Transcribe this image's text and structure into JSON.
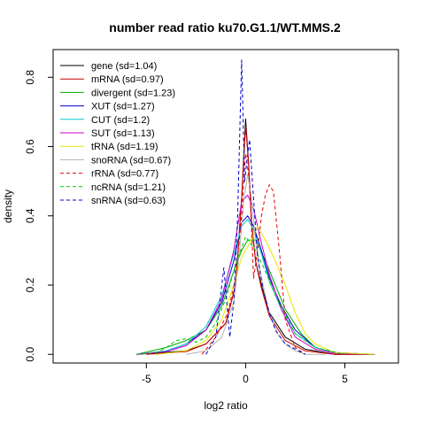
{
  "chart_data": {
    "type": "line",
    "title": "number read ratio ku70.G1.1/WT.MMS.2",
    "xlabel": "log2 ratio",
    "ylabel": "density",
    "xlim": [
      -9.7,
      7.7
    ],
    "ylim": [
      -0.025,
      0.88
    ],
    "x_ticks": [
      -5,
      0,
      5
    ],
    "x_tick_labels": [
      "-5",
      "0",
      "5"
    ],
    "y_ticks": [
      0.0,
      0.2,
      0.4,
      0.6,
      0.8
    ],
    "y_tick_labels": [
      "0.0",
      "0.2",
      "0.4",
      "0.6",
      "0.8"
    ],
    "grid": false,
    "legend_position": "top-left",
    "series": [
      {
        "name": "gene (sd=1.04)",
        "color": "#000000",
        "dash": "solid",
        "x": [
          -5.5,
          -3,
          -2,
          -1,
          -0.5,
          -0.2,
          0,
          0.15,
          0.3,
          0.5,
          0.8,
          1.2,
          2,
          3,
          4.5,
          6.5
        ],
        "y": [
          0,
          0.01,
          0.03,
          0.09,
          0.2,
          0.45,
          0.68,
          0.55,
          0.38,
          0.27,
          0.2,
          0.12,
          0.05,
          0.015,
          0,
          0
        ]
      },
      {
        "name": "mRNA (sd=0.97)",
        "color": "#cc0000",
        "dash": "solid",
        "x": [
          -5,
          -3,
          -2,
          -1,
          -0.5,
          -0.2,
          0,
          0.15,
          0.3,
          0.5,
          0.8,
          1.2,
          2,
          3,
          4.5,
          6.5
        ],
        "y": [
          0,
          0.008,
          0.03,
          0.09,
          0.2,
          0.45,
          0.66,
          0.55,
          0.38,
          0.27,
          0.19,
          0.11,
          0.04,
          0.01,
          0,
          0
        ]
      },
      {
        "name": "divergent (sd=1.23)",
        "color": "#00aa00",
        "dash": "solid",
        "x": [
          -5.5,
          -4,
          -3,
          -2,
          -1.2,
          -0.6,
          -0.2,
          0.1,
          0.5,
          1,
          1.5,
          2,
          2.8,
          3.5,
          4.5,
          6.5
        ],
        "y": [
          0,
          0.02,
          0.04,
          0.07,
          0.14,
          0.24,
          0.3,
          0.33,
          0.33,
          0.27,
          0.2,
          0.13,
          0.06,
          0.02,
          0.005,
          0
        ]
      },
      {
        "name": "XUT (sd=1.27)",
        "color": "#0000cc",
        "dash": "solid",
        "x": [
          -5.5,
          -4,
          -3,
          -2,
          -1.2,
          -0.6,
          -0.2,
          0.1,
          0.4,
          0.8,
          1.2,
          1.8,
          2.5,
          3.5,
          4.5,
          6.5
        ],
        "y": [
          0,
          0.01,
          0.03,
          0.07,
          0.15,
          0.27,
          0.38,
          0.4,
          0.37,
          0.3,
          0.22,
          0.14,
          0.07,
          0.02,
          0.005,
          0
        ]
      },
      {
        "name": "CUT (sd=1.2)",
        "color": "#00cccc",
        "dash": "solid",
        "x": [
          -5.5,
          -4,
          -3,
          -2,
          -1.2,
          -0.6,
          -0.2,
          0.1,
          0.4,
          0.8,
          1.2,
          1.8,
          2.5,
          3.5,
          4.5,
          6.5
        ],
        "y": [
          0,
          0.01,
          0.03,
          0.08,
          0.17,
          0.29,
          0.37,
          0.39,
          0.36,
          0.29,
          0.21,
          0.13,
          0.06,
          0.02,
          0.005,
          0
        ]
      },
      {
        "name": "SUT (sd=1.13)",
        "color": "#cc00cc",
        "dash": "solid",
        "x": [
          -5.5,
          -4,
          -3,
          -2,
          -1.2,
          -0.6,
          -0.2,
          0.1,
          0.4,
          0.8,
          1.2,
          1.8,
          2.5,
          3.5,
          4.5,
          6.5
        ],
        "y": [
          0,
          0.008,
          0.025,
          0.07,
          0.16,
          0.3,
          0.44,
          0.46,
          0.42,
          0.32,
          0.23,
          0.13,
          0.05,
          0.015,
          0.003,
          0
        ]
      },
      {
        "name": "tRNA (sd=1.19)",
        "color": "#e6e600",
        "dash": "solid",
        "x": [
          -4.5,
          -3,
          -2,
          -1.2,
          -0.6,
          -0.2,
          0.2,
          0.6,
          1,
          1.5,
          2,
          2.5,
          3,
          3.5,
          4.5,
          6.5
        ],
        "y": [
          0,
          0.01,
          0.04,
          0.1,
          0.2,
          0.28,
          0.32,
          0.37,
          0.33,
          0.27,
          0.2,
          0.12,
          0.06,
          0.03,
          0.005,
          0
        ]
      },
      {
        "name": "snoRNA (sd=0.67)",
        "color": "#b3b3b3",
        "dash": "solid",
        "x": [
          -3,
          -2,
          -1.2,
          -0.6,
          -0.3,
          -0.1,
          0.1,
          0.3,
          0.5,
          0.8,
          1.2,
          1.6,
          2,
          2.5,
          3,
          4
        ],
        "y": [
          0,
          0.01,
          0.05,
          0.15,
          0.3,
          0.44,
          0.52,
          0.45,
          0.33,
          0.22,
          0.12,
          0.06,
          0.03,
          0.01,
          0,
          0
        ]
      },
      {
        "name": "rRNA (sd=0.77)",
        "color": "#e60000",
        "dash": "dashed",
        "x": [
          -2.2,
          -1.5,
          -0.9,
          -0.5,
          -0.2,
          0,
          0.2,
          0.4,
          0.6,
          0.8,
          1,
          1.2,
          1.4,
          1.7,
          2,
          2.5,
          3
        ],
        "y": [
          0,
          0.05,
          0.12,
          0.22,
          0.4,
          0.58,
          0.5,
          0.22,
          0.3,
          0.4,
          0.46,
          0.49,
          0.47,
          0.3,
          0.1,
          0.02,
          0
        ]
      },
      {
        "name": "ncRNA (sd=1.21)",
        "color": "#00cc00",
        "dash": "dashed",
        "x": [
          -5.5,
          -4.5,
          -4,
          -3.5,
          -3,
          -2.5,
          -2,
          -1.5,
          -1,
          -0.5,
          0,
          0.5,
          1,
          1.5,
          2.5,
          3.5,
          5
        ],
        "y": [
          0,
          0.005,
          0.02,
          0.04,
          0.045,
          0.035,
          0.05,
          0.09,
          0.16,
          0.26,
          0.34,
          0.3,
          0.24,
          0.17,
          0.06,
          0.02,
          0
        ]
      },
      {
        "name": "snRNA (sd=0.63)",
        "color": "#0000cc",
        "dash": "dashed",
        "x": [
          -2,
          -1.5,
          -1.1,
          -0.8,
          -0.6,
          -0.4,
          -0.2,
          -0.05,
          0.05,
          0.2,
          0.4,
          0.6,
          0.9,
          1.2,
          1.5,
          2,
          3
        ],
        "y": [
          0,
          0.05,
          0.25,
          0.05,
          0.15,
          0.4,
          0.85,
          0.5,
          0.55,
          0.62,
          0.45,
          0.28,
          0.18,
          0.12,
          0.07,
          0.03,
          0
        ]
      }
    ]
  }
}
